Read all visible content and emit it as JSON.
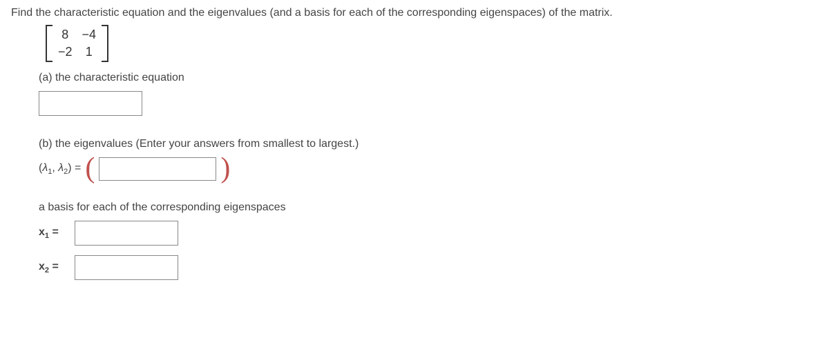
{
  "question": "Find the characteristic equation and the eigenvalues (and a basis for each of the corresponding eigenspaces) of the matrix.",
  "matrix": {
    "r0c0": "8",
    "r0c1": "−4",
    "r1c0": "−2",
    "r1c1": "1"
  },
  "parts": {
    "a_label": "(a) the characteristic equation",
    "b_label": "(b) the eigenvalues (Enter your answers from smallest to largest.)",
    "lambda_prefix": "(",
    "lambda1": "λ",
    "sub1": "1",
    "comma": ", ",
    "lambda2": "λ",
    "sub2": "2",
    "lambda_suffix": ") =",
    "basis_label": "a basis for each of the corresponding eigenspaces",
    "x1_prefix": "x",
    "x1_sub": "1",
    "x2_prefix": "x",
    "x2_sub": "2",
    "equals": " ="
  }
}
